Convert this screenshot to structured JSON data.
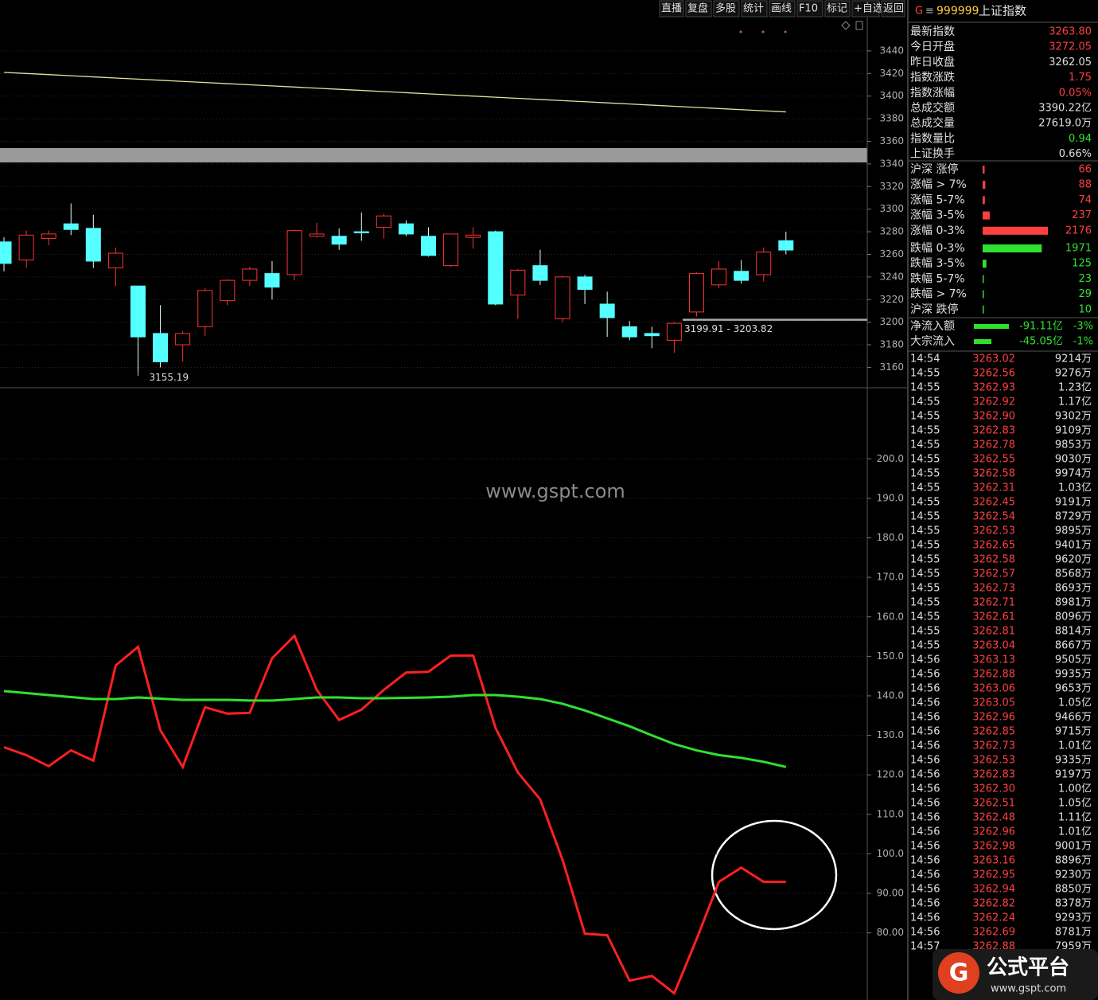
{
  "toolbar": [
    "直播",
    "复盘",
    "多股",
    "统计",
    "画线",
    "F10",
    "标记",
    "+自选",
    "返回"
  ],
  "header": {
    "mark": "G",
    "menu": "≡",
    "code": "999999",
    "name": "上证指数"
  },
  "quote_panel": [
    {
      "label": "最新指数",
      "value": "3263.80",
      "color": "#ff4040"
    },
    {
      "label": "今日开盘",
      "value": "3272.05",
      "color": "#ff4040"
    },
    {
      "label": "昨日收盘",
      "value": "3262.05",
      "color": "#e0e0e0"
    },
    {
      "label": "指数涨跌",
      "value": "1.75",
      "color": "#ff4040"
    },
    {
      "label": "指数涨幅",
      "value": "0.05%",
      "color": "#ff4040"
    },
    {
      "label": "总成交额",
      "value": "3390.22亿",
      "color": "#e0e0e0"
    },
    {
      "label": "总成交量",
      "value": "27619.0万",
      "color": "#e0e0e0"
    },
    {
      "label": "指数量比",
      "value": "0.94",
      "color": "#30e030"
    },
    {
      "label": "上证换手",
      "value": "0.66%",
      "color": "#e0e0e0"
    }
  ],
  "stats_panel": [
    {
      "label": "沪深 涨停",
      "value": 66,
      "color": "#ff4040"
    },
    {
      "label": "涨幅 > 7%",
      "value": 88,
      "color": "#ff4040"
    },
    {
      "label": "涨幅 5-7%",
      "value": 74,
      "color": "#ff4040"
    },
    {
      "label": "涨幅 3-5%",
      "value": 237,
      "color": "#ff4040"
    },
    {
      "label": "涨幅 0-3%",
      "value": 2176,
      "color": "#ff4040"
    },
    {
      "label": "跌幅 0-3%",
      "value": 1971,
      "color": "#30e030"
    },
    {
      "label": "跌幅 3-5%",
      "value": 125,
      "color": "#30e030"
    },
    {
      "label": "跌幅 5-7%",
      "value": 23,
      "color": "#30e030"
    },
    {
      "label": "跌幅 > 7%",
      "value": 29,
      "color": "#30e030"
    },
    {
      "label": "沪深 跌停",
      "value": 10,
      "color": "#30e030"
    }
  ],
  "flow_panel": [
    {
      "label": "净流入额",
      "value": "-91.11亿",
      "pct": "-3%"
    },
    {
      "label": "大宗流入",
      "value": "-45.05亿",
      "pct": "-1%"
    }
  ],
  "ticks_table": [
    [
      "14:54",
      "3263.02",
      "9214万"
    ],
    [
      "14:55",
      "3262.56",
      "9276万"
    ],
    [
      "14:55",
      "3262.93",
      "1.23亿"
    ],
    [
      "14:55",
      "3262.92",
      "1.17亿"
    ],
    [
      "14:55",
      "3262.90",
      "9302万"
    ],
    [
      "14:55",
      "3262.83",
      "9109万"
    ],
    [
      "14:55",
      "3262.78",
      "9853万"
    ],
    [
      "14:55",
      "3262.55",
      "9030万"
    ],
    [
      "14:55",
      "3262.58",
      "9974万"
    ],
    [
      "14:55",
      "3262.31",
      "1.03亿"
    ],
    [
      "14:55",
      "3262.45",
      "9191万"
    ],
    [
      "14:55",
      "3262.54",
      "8729万"
    ],
    [
      "14:55",
      "3262.53",
      "9895万"
    ],
    [
      "14:55",
      "3262.65",
      "9401万"
    ],
    [
      "14:55",
      "3262.58",
      "9620万"
    ],
    [
      "14:55",
      "3262.57",
      "8568万"
    ],
    [
      "14:55",
      "3262.73",
      "8693万"
    ],
    [
      "14:55",
      "3262.71",
      "8981万"
    ],
    [
      "14:55",
      "3262.61",
      "8096万"
    ],
    [
      "14:55",
      "3262.81",
      "8814万"
    ],
    [
      "14:55",
      "3263.04",
      "8667万"
    ],
    [
      "14:56",
      "3263.13",
      "9505万"
    ],
    [
      "14:56",
      "3262.88",
      "9935万"
    ],
    [
      "14:56",
      "3263.06",
      "9653万"
    ],
    [
      "14:56",
      "3263.05",
      "1.05亿"
    ],
    [
      "14:56",
      "3262.96",
      "9466万"
    ],
    [
      "14:56",
      "3262.85",
      "9715万"
    ],
    [
      "14:56",
      "3262.73",
      "1.01亿"
    ],
    [
      "14:56",
      "3262.53",
      "9335万"
    ],
    [
      "14:56",
      "3262.83",
      "9197万"
    ],
    [
      "14:56",
      "3262.30",
      "1.00亿"
    ],
    [
      "14:56",
      "3262.51",
      "1.05亿"
    ],
    [
      "14:56",
      "3262.48",
      "1.11亿"
    ],
    [
      "14:56",
      "3262.96",
      "1.01亿"
    ],
    [
      "14:56",
      "3262.98",
      "9001万"
    ],
    [
      "14:56",
      "3263.16",
      "8896万"
    ],
    [
      "14:56",
      "3262.95",
      "9230万"
    ],
    [
      "14:56",
      "3262.94",
      "8850万"
    ],
    [
      "14:56",
      "3262.82",
      "8378万"
    ],
    [
      "14:56",
      "3262.24",
      "9293万"
    ],
    [
      "14:56",
      "3262.69",
      "8781万"
    ],
    [
      "14:57",
      "3262.88",
      "7959万"
    ]
  ],
  "watermark": "www.gspt.com",
  "logo": {
    "title": "公式平台",
    "url": "www.gspt.com"
  },
  "chart_data": [
    {
      "type": "candlestick",
      "ylim": [
        3142,
        3485
      ],
      "yticks": [
        3160,
        3180,
        3200,
        3220,
        3240,
        3260,
        3280,
        3300,
        3320,
        3340,
        3360,
        3380,
        3400,
        3420,
        3440
      ],
      "up_color": "#ff3232",
      "down_color": "#54ffff",
      "open": [
        3271,
        3255,
        3274,
        3287,
        3283,
        3248,
        3232,
        3190,
        3180,
        3196,
        3219,
        3237,
        3243,
        3242,
        3276,
        3276,
        3280,
        3284,
        3287,
        3276,
        3250,
        3275,
        3280,
        3224,
        3250,
        3203,
        3240,
        3216,
        3196,
        3190,
        3184,
        3209,
        3233,
        3245,
        3242,
        3272.05
      ],
      "high": [
        3275,
        3281,
        3281,
        3305,
        3295,
        3266,
        3232,
        3215,
        3192,
        3230,
        3238,
        3249,
        3254,
        3282,
        3288,
        3283,
        3297,
        3296,
        3290,
        3284,
        3278,
        3284,
        3281,
        3247,
        3264,
        3241,
        3242,
        3227,
        3201,
        3196,
        3200,
        3244,
        3254,
        3255,
        3266,
        3280
      ],
      "low": [
        3245,
        3248,
        3268,
        3277,
        3248,
        3232,
        3155.19,
        3160,
        3165,
        3188,
        3215,
        3232,
        3220,
        3237,
        3275,
        3264,
        3272,
        3274,
        3276,
        3258,
        3249,
        3265,
        3215,
        3203,
        3233,
        3200,
        3216,
        3187,
        3184,
        3177,
        3173,
        3205,
        3230,
        3234,
        3236,
        3260
      ],
      "close": [
        3252,
        3277,
        3278,
        3282,
        3254,
        3261,
        3187,
        3165,
        3190,
        3228,
        3237,
        3247,
        3231,
        3281,
        3278,
        3269,
        3279,
        3294,
        3278,
        3259,
        3278,
        3277,
        3216,
        3246,
        3237,
        3240,
        3229,
        3204,
        3187,
        3188,
        3199,
        3243,
        3247,
        3237,
        3262,
        3263.8
      ],
      "ma": {
        "color": "#e8e0a0",
        "values": [
          3421,
          3420,
          3419,
          3418,
          3417,
          3416,
          3415,
          3414,
          3413,
          3412,
          3411,
          3410,
          3409,
          3408,
          3407,
          3406,
          3405,
          3404,
          3403,
          3402,
          3401,
          3400,
          3399,
          3398,
          3397,
          3396,
          3395,
          3394,
          3393,
          3392,
          3391,
          3390,
          3389,
          3388,
          3387,
          3386
        ]
      },
      "annotations": [
        {
          "text": "3155.19",
          "value": 3155.19
        },
        {
          "text": "3199.91 - 3203.82",
          "value": 3200
        }
      ]
    },
    {
      "type": "line",
      "ylim": [
        63,
        218
      ],
      "yticks": [
        {
          "value": 80,
          "label": "80.00"
        },
        {
          "value": 90,
          "label": "90.00"
        },
        {
          "value": 100,
          "label": "100.0"
        },
        {
          "value": 110,
          "label": "110.0"
        },
        {
          "value": 120,
          "label": "120.0"
        },
        {
          "value": 130,
          "label": "130.0"
        },
        {
          "value": 140,
          "label": "140.0"
        },
        {
          "value": 150,
          "label": "150.0"
        },
        {
          "value": 160,
          "label": "160.0"
        },
        {
          "value": 170,
          "label": "170.0"
        },
        {
          "value": 180,
          "label": "180.0"
        },
        {
          "value": 190,
          "label": "190.0"
        },
        {
          "value": 200,
          "label": "200.0"
        }
      ],
      "series": [
        {
          "color": "#ff2020",
          "values": [
            127.0,
            125.0,
            122.2,
            126.2,
            123.6,
            147.7,
            152.4,
            131.3,
            122.0,
            137.1,
            135.5,
            135.7,
            149.5,
            155.2,
            141.5,
            133.9,
            136.5,
            141.5,
            145.9,
            146.1,
            150.2,
            150.2,
            131.9,
            120.6,
            113.8,
            98.5,
            79.8,
            79.4,
            67.9,
            69.1,
            64.7,
            78.4,
            92.9,
            96.5,
            92.9,
            92.9
          ]
        },
        {
          "color": "#30e030",
          "values": [
            141.2,
            140.7,
            140.2,
            139.7,
            139.2,
            139.2,
            139.6,
            139.3,
            139.0,
            139.0,
            139.0,
            138.8,
            138.8,
            139.2,
            139.6,
            139.6,
            139.4,
            139.4,
            139.5,
            139.6,
            139.8,
            140.2,
            140.2,
            139.8,
            139.2,
            138.0,
            136.3,
            134.3,
            132.3,
            130.0,
            127.8,
            126.2,
            125.0,
            124.3,
            123.3,
            122.0
          ]
        }
      ]
    }
  ]
}
